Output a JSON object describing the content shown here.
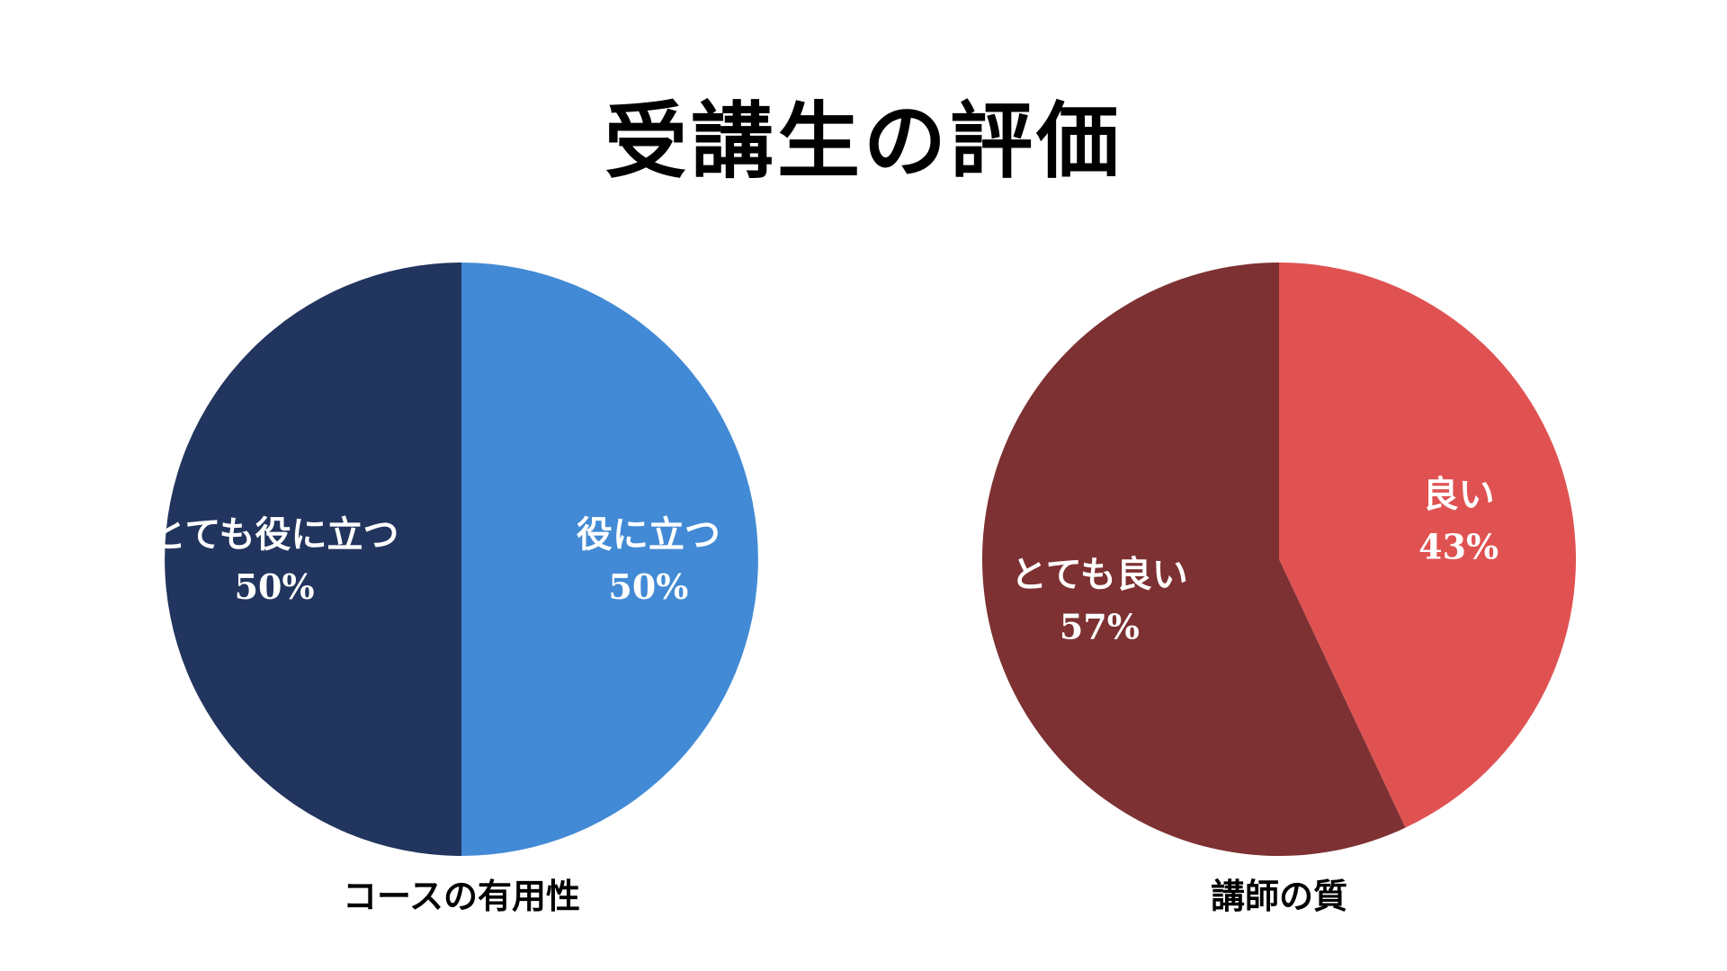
{
  "title": "受講生の評価",
  "chart_data": [
    {
      "type": "pie",
      "title": "コースの有用性",
      "slices": [
        {
          "label": "役に立つ",
          "value": 50,
          "display": "50%",
          "color": "#428AD5"
        },
        {
          "label": "とても役に立つ",
          "value": 50,
          "display": "50%",
          "color": "#22355E"
        }
      ]
    },
    {
      "type": "pie",
      "title": "講師の質",
      "slices": [
        {
          "label": "良い",
          "value": 43,
          "display": "43%",
          "color": "#E05252"
        },
        {
          "label": "とても良い",
          "value": 57,
          "display": "57%",
          "color": "#7D3132"
        }
      ]
    }
  ]
}
